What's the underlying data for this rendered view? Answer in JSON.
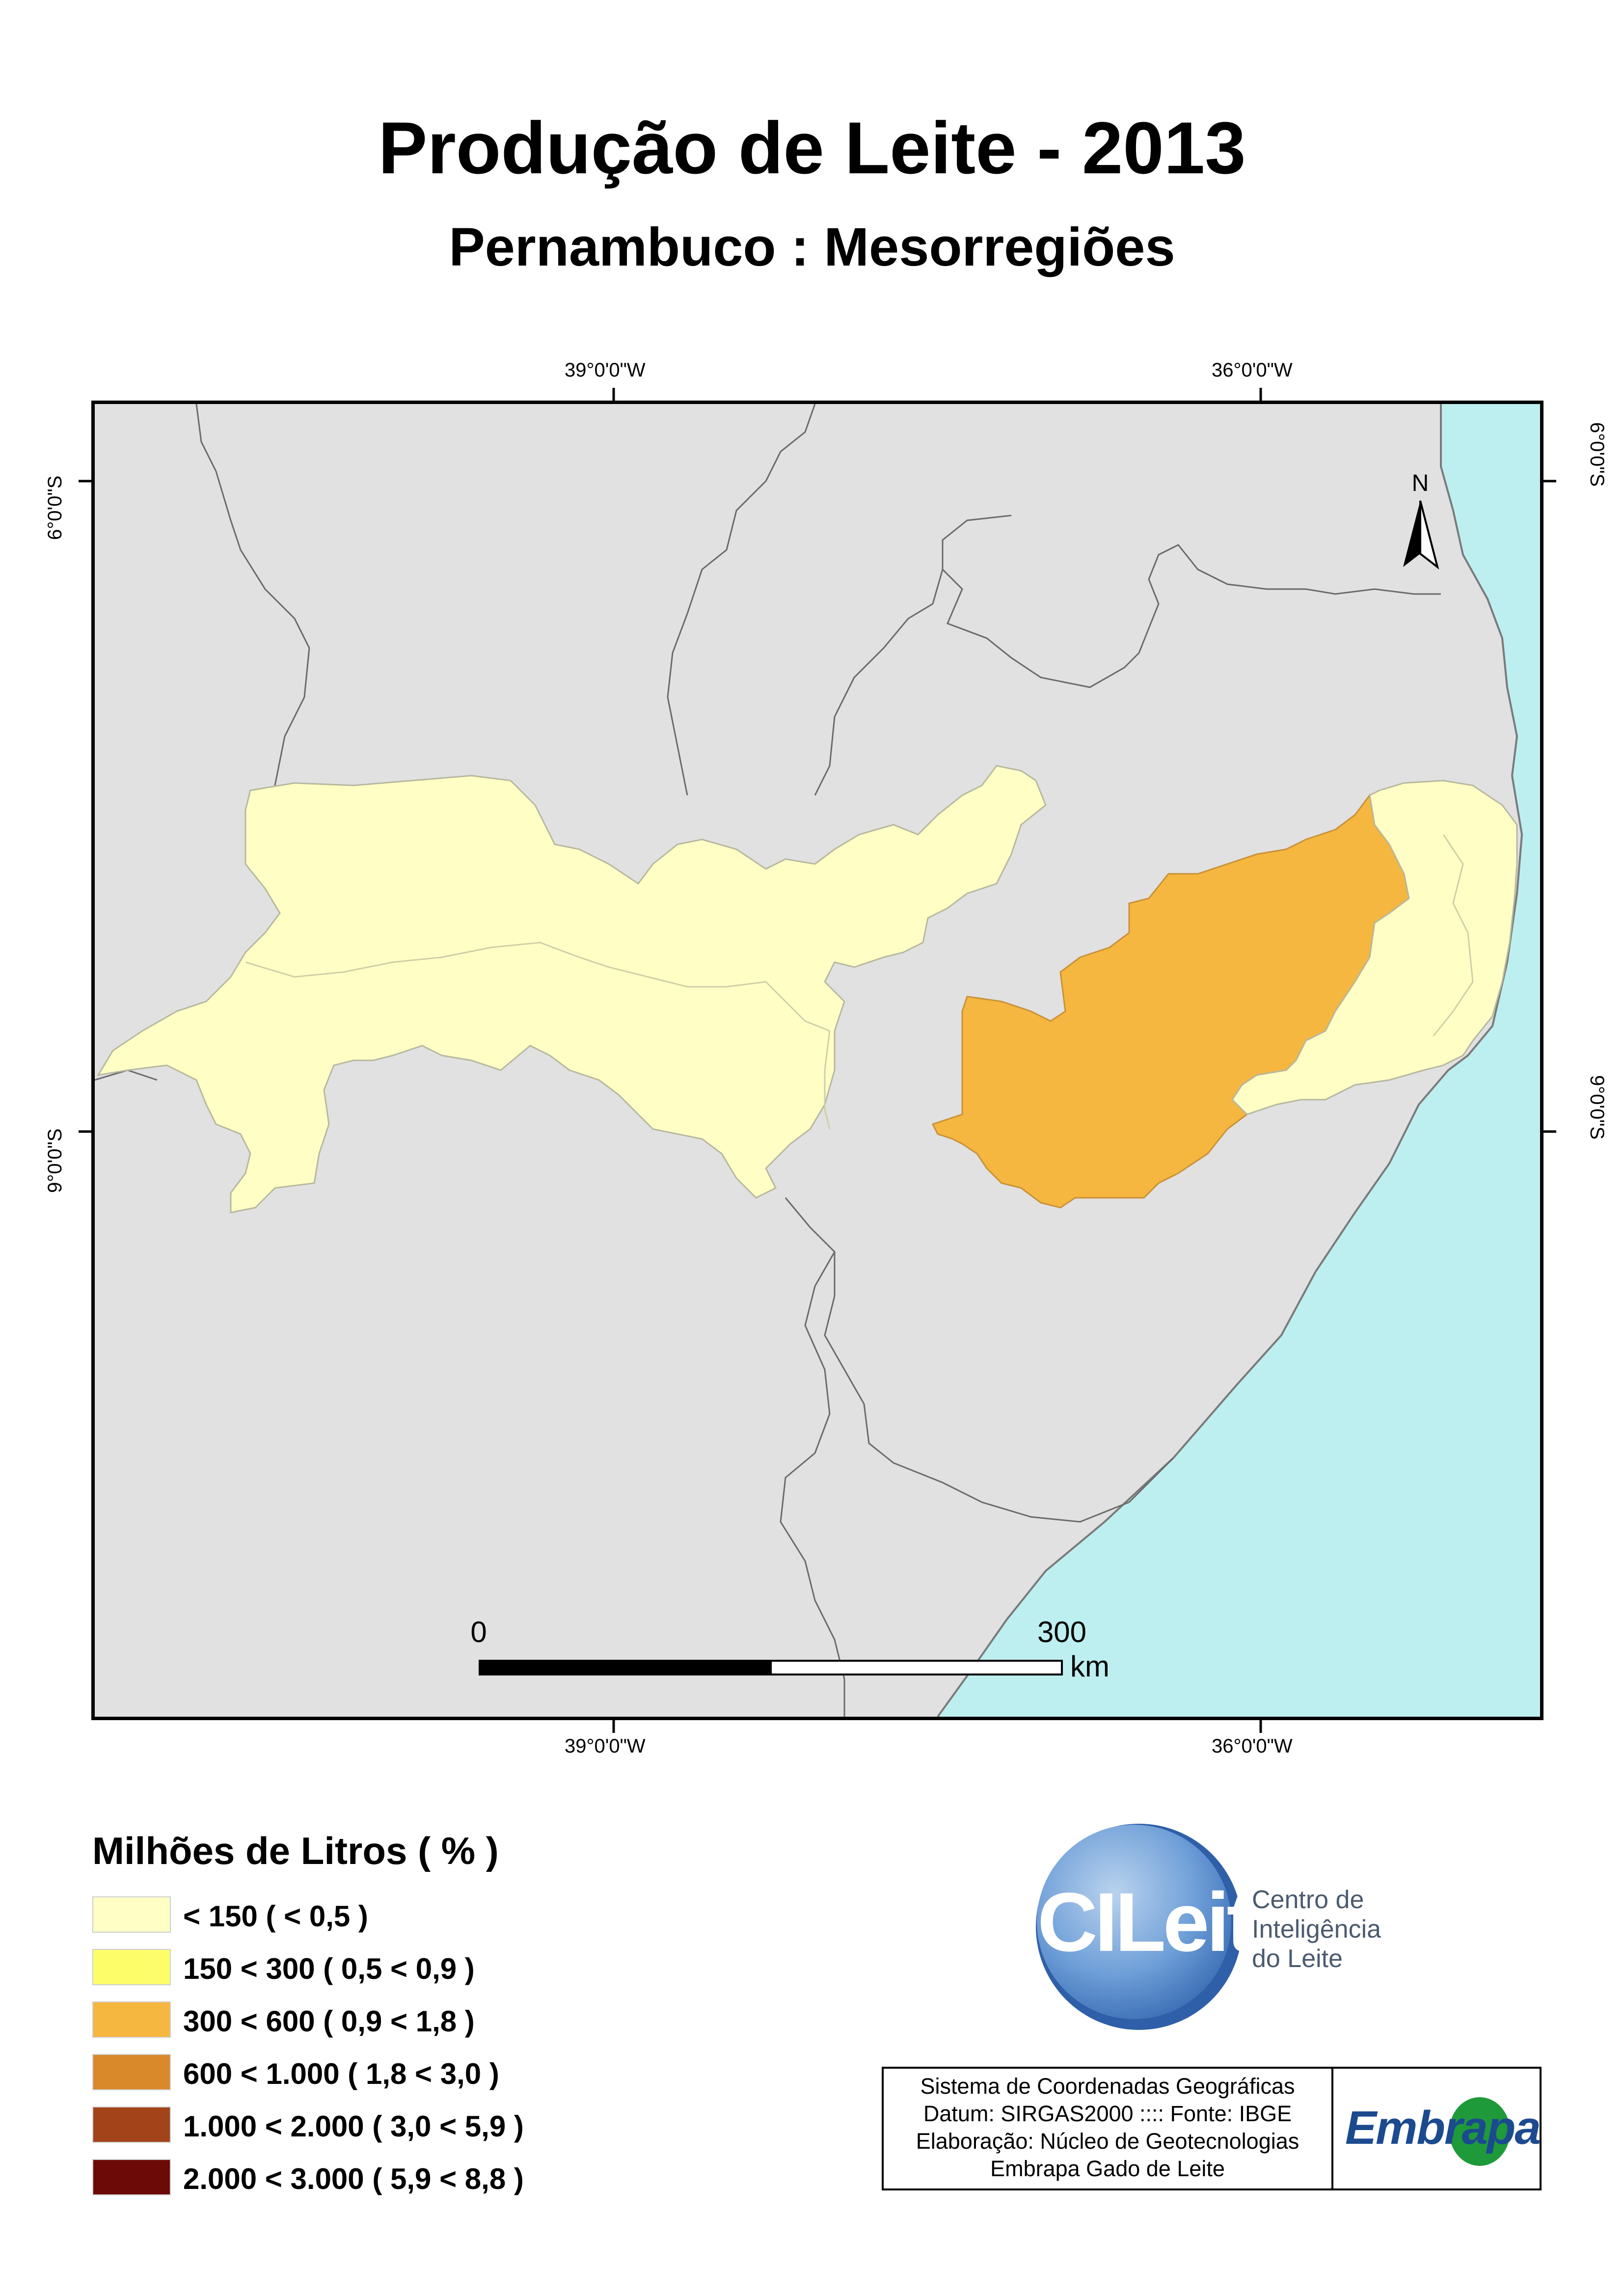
{
  "title": "Produção de Leite - 2013",
  "subtitle": "Pernambuco : Mesorregiões",
  "grid": {
    "lon_labels": [
      "39°0'0\"W",
      "36°0'0\"W"
    ],
    "lat_labels": [
      "6°0'0\"S",
      "9°0'0\"S"
    ]
  },
  "north_arrow": {
    "label": "N",
    "icon": "north-arrow-icon"
  },
  "scale_bar": {
    "start": "0",
    "end": "300",
    "unit": "km"
  },
  "colors": {
    "land": "#e1e1e1",
    "sea": "#bdeff0",
    "class_lt150": "#ffffc5",
    "class_300_600": "#f5b73f"
  },
  "legend": {
    "title": "Milhões de Litros ( % )",
    "items": [
      {
        "label": "< 150 ( < 0,5 )",
        "color": "#ffffc5"
      },
      {
        "label": "150 < 300 ( 0,5 < 0,9 )",
        "color": "#fdfd6a"
      },
      {
        "label": "300 < 600 ( 0,9 < 1,8 )",
        "color": "#f5b73f"
      },
      {
        "label": "600 < 1.000 ( 1,8 < 3,0 )",
        "color": "#d9892a"
      },
      {
        "label": "1.000 < 2.000 ( 3,0 < 5,9 )",
        "color": "#a3431a"
      },
      {
        "label": "2.000 < 3.000 ( 5,9 < 8,8 )",
        "color": "#6b0a06"
      }
    ]
  },
  "logo": {
    "name": "CILeite",
    "line1": "Centro de",
    "line2": "Inteligência",
    "line3": "do Leite"
  },
  "info": {
    "line1": "Sistema de Coordenadas Geográficas",
    "line2": "Datum: SIRGAS2000  ::::  Fonte: IBGE",
    "line3": "Elaboração: Núcleo de Geotecnologias",
    "line4": "Embrapa Gado de Leite"
  },
  "embrapa": "Embrapa"
}
